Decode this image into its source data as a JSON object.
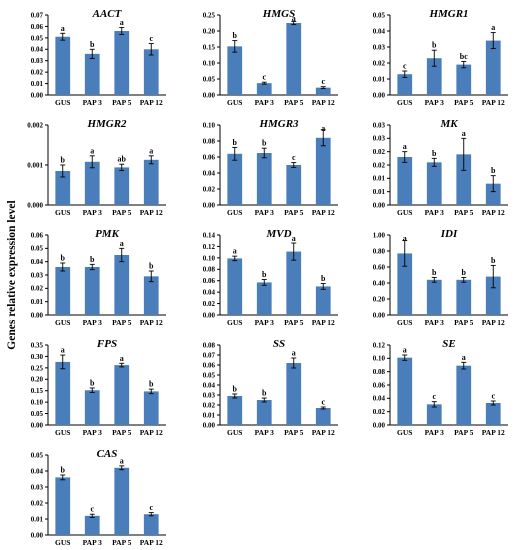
{
  "figure": {
    "ylabel": "Genes relative expression level",
    "bar_color": "#4a7ebb",
    "axis_color": "#000000"
  },
  "chart_data": [
    {
      "type": "bar",
      "title": "AACT",
      "categories": [
        "GUS",
        "PAP 3",
        "PAP 5",
        "PAP 12"
      ],
      "values": [
        0.051,
        0.036,
        0.056,
        0.04
      ],
      "errors": [
        0.003,
        0.004,
        0.003,
        0.005
      ],
      "letters": [
        "a",
        "b",
        "a",
        "c"
      ],
      "ylim": [
        0,
        0.07
      ],
      "yticks": [
        "0.00",
        "0.01",
        "0.02",
        "0.03",
        "0.04",
        "0.05",
        "0.06",
        "0.07"
      ]
    },
    {
      "type": "bar",
      "title": "HMGS",
      "categories": [
        "GUS",
        "PAP 3",
        "PAP 5",
        "PAP 12"
      ],
      "values": [
        0.152,
        0.037,
        0.225,
        0.023
      ],
      "errors": [
        0.018,
        0.003,
        0.005,
        0.003
      ],
      "letters": [
        "b",
        "c",
        "a",
        "c"
      ],
      "ylim": [
        0,
        0.25
      ],
      "yticks": [
        "0.00",
        "0.05",
        "0.10",
        "0.15",
        "0.20",
        "0.25"
      ]
    },
    {
      "type": "bar",
      "title": "HMGR1",
      "categories": [
        "GUS",
        "PAP 3",
        "PAP 5",
        "PAP 12"
      ],
      "values": [
        0.013,
        0.023,
        0.019,
        0.034
      ],
      "errors": [
        0.002,
        0.005,
        0.002,
        0.005
      ],
      "letters": [
        "c",
        "b",
        "bc",
        "a"
      ],
      "ylim": [
        0,
        0.05
      ],
      "yticks": [
        "0.00",
        "0.01",
        "0.02",
        "0.03",
        "0.04",
        "0.05"
      ]
    },
    {
      "type": "bar",
      "title": "HMGR2",
      "categories": [
        "GUS",
        "PAP 3",
        "PAP 5",
        "PAP 12"
      ],
      "values": [
        0.00085,
        0.00108,
        0.00094,
        0.00113
      ],
      "errors": [
        0.00015,
        0.00015,
        8e-05,
        0.0001
      ],
      "letters": [
        "b",
        "a",
        "ab",
        "a"
      ],
      "ylim": [
        0,
        0.002
      ],
      "yticks": [
        "0.000",
        "0.001",
        "0.002"
      ]
    },
    {
      "type": "bar",
      "title": "HMGR3",
      "categories": [
        "GUS",
        "PAP 3",
        "PAP 5",
        "PAP 12"
      ],
      "values": [
        0.064,
        0.065,
        0.05,
        0.084
      ],
      "errors": [
        0.008,
        0.006,
        0.003,
        0.01
      ],
      "letters": [
        "b",
        "b",
        "c",
        "a"
      ],
      "ylim": [
        0,
        0.1
      ],
      "yticks": [
        "0.00",
        "0.02",
        "0.04",
        "0.06",
        "0.08",
        "0.10"
      ]
    },
    {
      "type": "bar",
      "title": "MK",
      "categories": [
        "GUS",
        "PAP 3",
        "PAP 5",
        "PAP 12"
      ],
      "values": [
        0.018,
        0.016,
        0.019,
        0.008
      ],
      "errors": [
        0.002,
        0.0015,
        0.006,
        0.003
      ],
      "letters": [
        "a",
        "b",
        "a",
        "b"
      ],
      "ylim": [
        0,
        0.03
      ],
      "yticks": [
        "0.00",
        "0.01",
        "0.01",
        "0.02",
        "0.02",
        "0.03",
        "0.03"
      ]
    },
    {
      "type": "bar",
      "title": "PMK",
      "categories": [
        "GUS",
        "PAP 3",
        "PAP 5",
        "PAP 12"
      ],
      "values": [
        0.036,
        0.036,
        0.045,
        0.029
      ],
      "errors": [
        0.003,
        0.002,
        0.005,
        0.004
      ],
      "letters": [
        "b",
        "b",
        "a",
        "b"
      ],
      "ylim": [
        0,
        0.06
      ],
      "yticks": [
        "0.00",
        "0.01",
        "0.02",
        "0.03",
        "0.04",
        "0.05",
        "0.06"
      ]
    },
    {
      "type": "bar",
      "title": "MVD",
      "categories": [
        "GUS",
        "PAP 3",
        "PAP 5",
        "PAP 12"
      ],
      "values": [
        0.099,
        0.057,
        0.111,
        0.05
      ],
      "errors": [
        0.004,
        0.005,
        0.015,
        0.005
      ],
      "letters": [
        "a",
        "b",
        "a",
        "b"
      ],
      "ylim": [
        0,
        0.14
      ],
      "yticks": [
        "0.00",
        "0.02",
        "0.04",
        "0.06",
        "0.08",
        "0.10",
        "0.12",
        "0.14"
      ]
    },
    {
      "type": "bar",
      "title": "IDI",
      "categories": [
        "GUS",
        "PAP 3",
        "PAP 5",
        "PAP 12"
      ],
      "values": [
        0.77,
        0.44,
        0.44,
        0.48
      ],
      "errors": [
        0.16,
        0.03,
        0.03,
        0.14
      ],
      "letters": [
        "a",
        "b",
        "b",
        "b"
      ],
      "ylim": [
        0,
        1.0
      ],
      "yticks": [
        "0.00",
        "0.20",
        "0.40",
        "0.60",
        "0.80",
        "1.00"
      ]
    },
    {
      "type": "bar",
      "title": "FPS",
      "categories": [
        "GUS",
        "PAP 3",
        "PAP 5",
        "PAP 12"
      ],
      "values": [
        0.276,
        0.152,
        0.262,
        0.147
      ],
      "errors": [
        0.03,
        0.01,
        0.008,
        0.01
      ],
      "letters": [
        "a",
        "b",
        "a",
        "b"
      ],
      "ylim": [
        0,
        0.35
      ],
      "yticks": [
        "0.00",
        "0.05",
        "0.10",
        "0.15",
        "0.20",
        "0.25",
        "0.30",
        "0.35"
      ]
    },
    {
      "type": "bar",
      "title": "SS",
      "categories": [
        "GUS",
        "PAP 3",
        "PAP 5",
        "PAP 12"
      ],
      "values": [
        0.029,
        0.025,
        0.062,
        0.017
      ],
      "errors": [
        0.002,
        0.002,
        0.005,
        0.001
      ],
      "letters": [
        "b",
        "b",
        "a",
        "c"
      ],
      "ylim": [
        0,
        0.08
      ],
      "yticks": [
        "0.00",
        "0.01",
        "0.02",
        "0.03",
        "0.04",
        "0.05",
        "0.06",
        "0.07",
        "0.08"
      ]
    },
    {
      "type": "bar",
      "title": "SE",
      "categories": [
        "GUS",
        "PAP 3",
        "PAP 5",
        "PAP 12"
      ],
      "values": [
        0.101,
        0.031,
        0.089,
        0.033
      ],
      "errors": [
        0.004,
        0.004,
        0.005,
        0.003
      ],
      "letters": [
        "a",
        "c",
        "a",
        "c"
      ],
      "ylim": [
        0,
        0.12
      ],
      "yticks": [
        "0.00",
        "0.02",
        "0.04",
        "0.06",
        "0.08",
        "0.10",
        "0.12"
      ]
    },
    {
      "type": "bar",
      "title": "CAS",
      "categories": [
        "GUS",
        "PAP 3",
        "PAP 5",
        "PAP 12"
      ],
      "values": [
        0.036,
        0.012,
        0.042,
        0.013
      ],
      "errors": [
        0.0015,
        0.001,
        0.0012,
        0.001
      ],
      "letters": [
        "b",
        "c",
        "a",
        "c"
      ],
      "ylim": [
        0,
        0.05
      ],
      "yticks": [
        "0.00",
        "0.01",
        "0.02",
        "0.03",
        "0.04",
        "0.05"
      ]
    }
  ]
}
